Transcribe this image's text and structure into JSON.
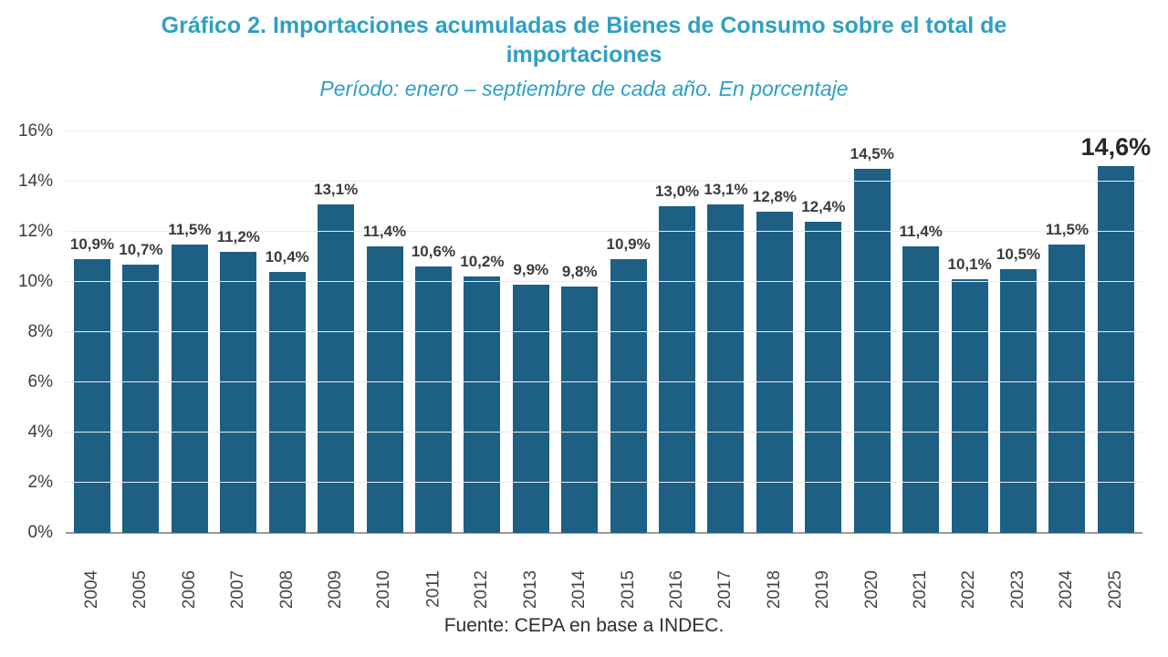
{
  "header": {
    "title_line1": "Gráfico 2. Importaciones acumuladas de Bienes de Consumo sobre el total de",
    "title_line2": "importaciones",
    "subtitle": "Período: enero – septiembre de cada año. En porcentaje"
  },
  "footer": {
    "source": "Fuente: CEPA en base a INDEC."
  },
  "colors": {
    "bar": "#1e5f84",
    "title": "#2f9fc3",
    "value_label": "#3b3b3b",
    "axis_label": "#3d3d3d",
    "gridline": "#ececec",
    "baseline": "#9a9a9a"
  },
  "chart_data": {
    "type": "bar",
    "title": "Gráfico 2. Importaciones acumuladas de Bienes de Consumo sobre el total de importaciones",
    "subtitle": "Período: enero – septiembre de cada año. En porcentaje",
    "xlabel": "",
    "ylabel": "",
    "categories": [
      "2004",
      "2005",
      "2006",
      "2007",
      "2008",
      "2009",
      "2010",
      "2011",
      "2012",
      "2013",
      "2014",
      "2015",
      "2016",
      "2017",
      "2018",
      "2019",
      "2020",
      "2021",
      "2022",
      "2023",
      "2024",
      "2025"
    ],
    "values": [
      10.9,
      10.7,
      11.5,
      11.2,
      10.4,
      13.1,
      11.4,
      10.6,
      10.2,
      9.9,
      9.8,
      10.9,
      13.0,
      13.1,
      12.8,
      12.4,
      14.5,
      11.4,
      10.1,
      10.5,
      11.5,
      14.6
    ],
    "point_labels": [
      "10,9%",
      "10,7%",
      "11,5%",
      "11,2%",
      "10,4%",
      "13,1%",
      "11,4%",
      "10,6%",
      "10,2%",
      "9,9%",
      "9,8%",
      "10,9%",
      "13,0%",
      "13,1%",
      "12,8%",
      "12,4%",
      "14,5%",
      "11,4%",
      "10,1%",
      "10,5%",
      "11,5%",
      "14,6%"
    ],
    "highlight_last_label": true,
    "ylim": [
      0,
      16
    ],
    "yticks": [
      0,
      2,
      4,
      6,
      8,
      10,
      12,
      14,
      16
    ],
    "ytick_labels": [
      "0%",
      "2%",
      "4%",
      "6%",
      "8%",
      "10%",
      "12%",
      "14%",
      "16%"
    ],
    "grid": true,
    "legend": null,
    "source": "Fuente: CEPA en base a INDEC."
  }
}
